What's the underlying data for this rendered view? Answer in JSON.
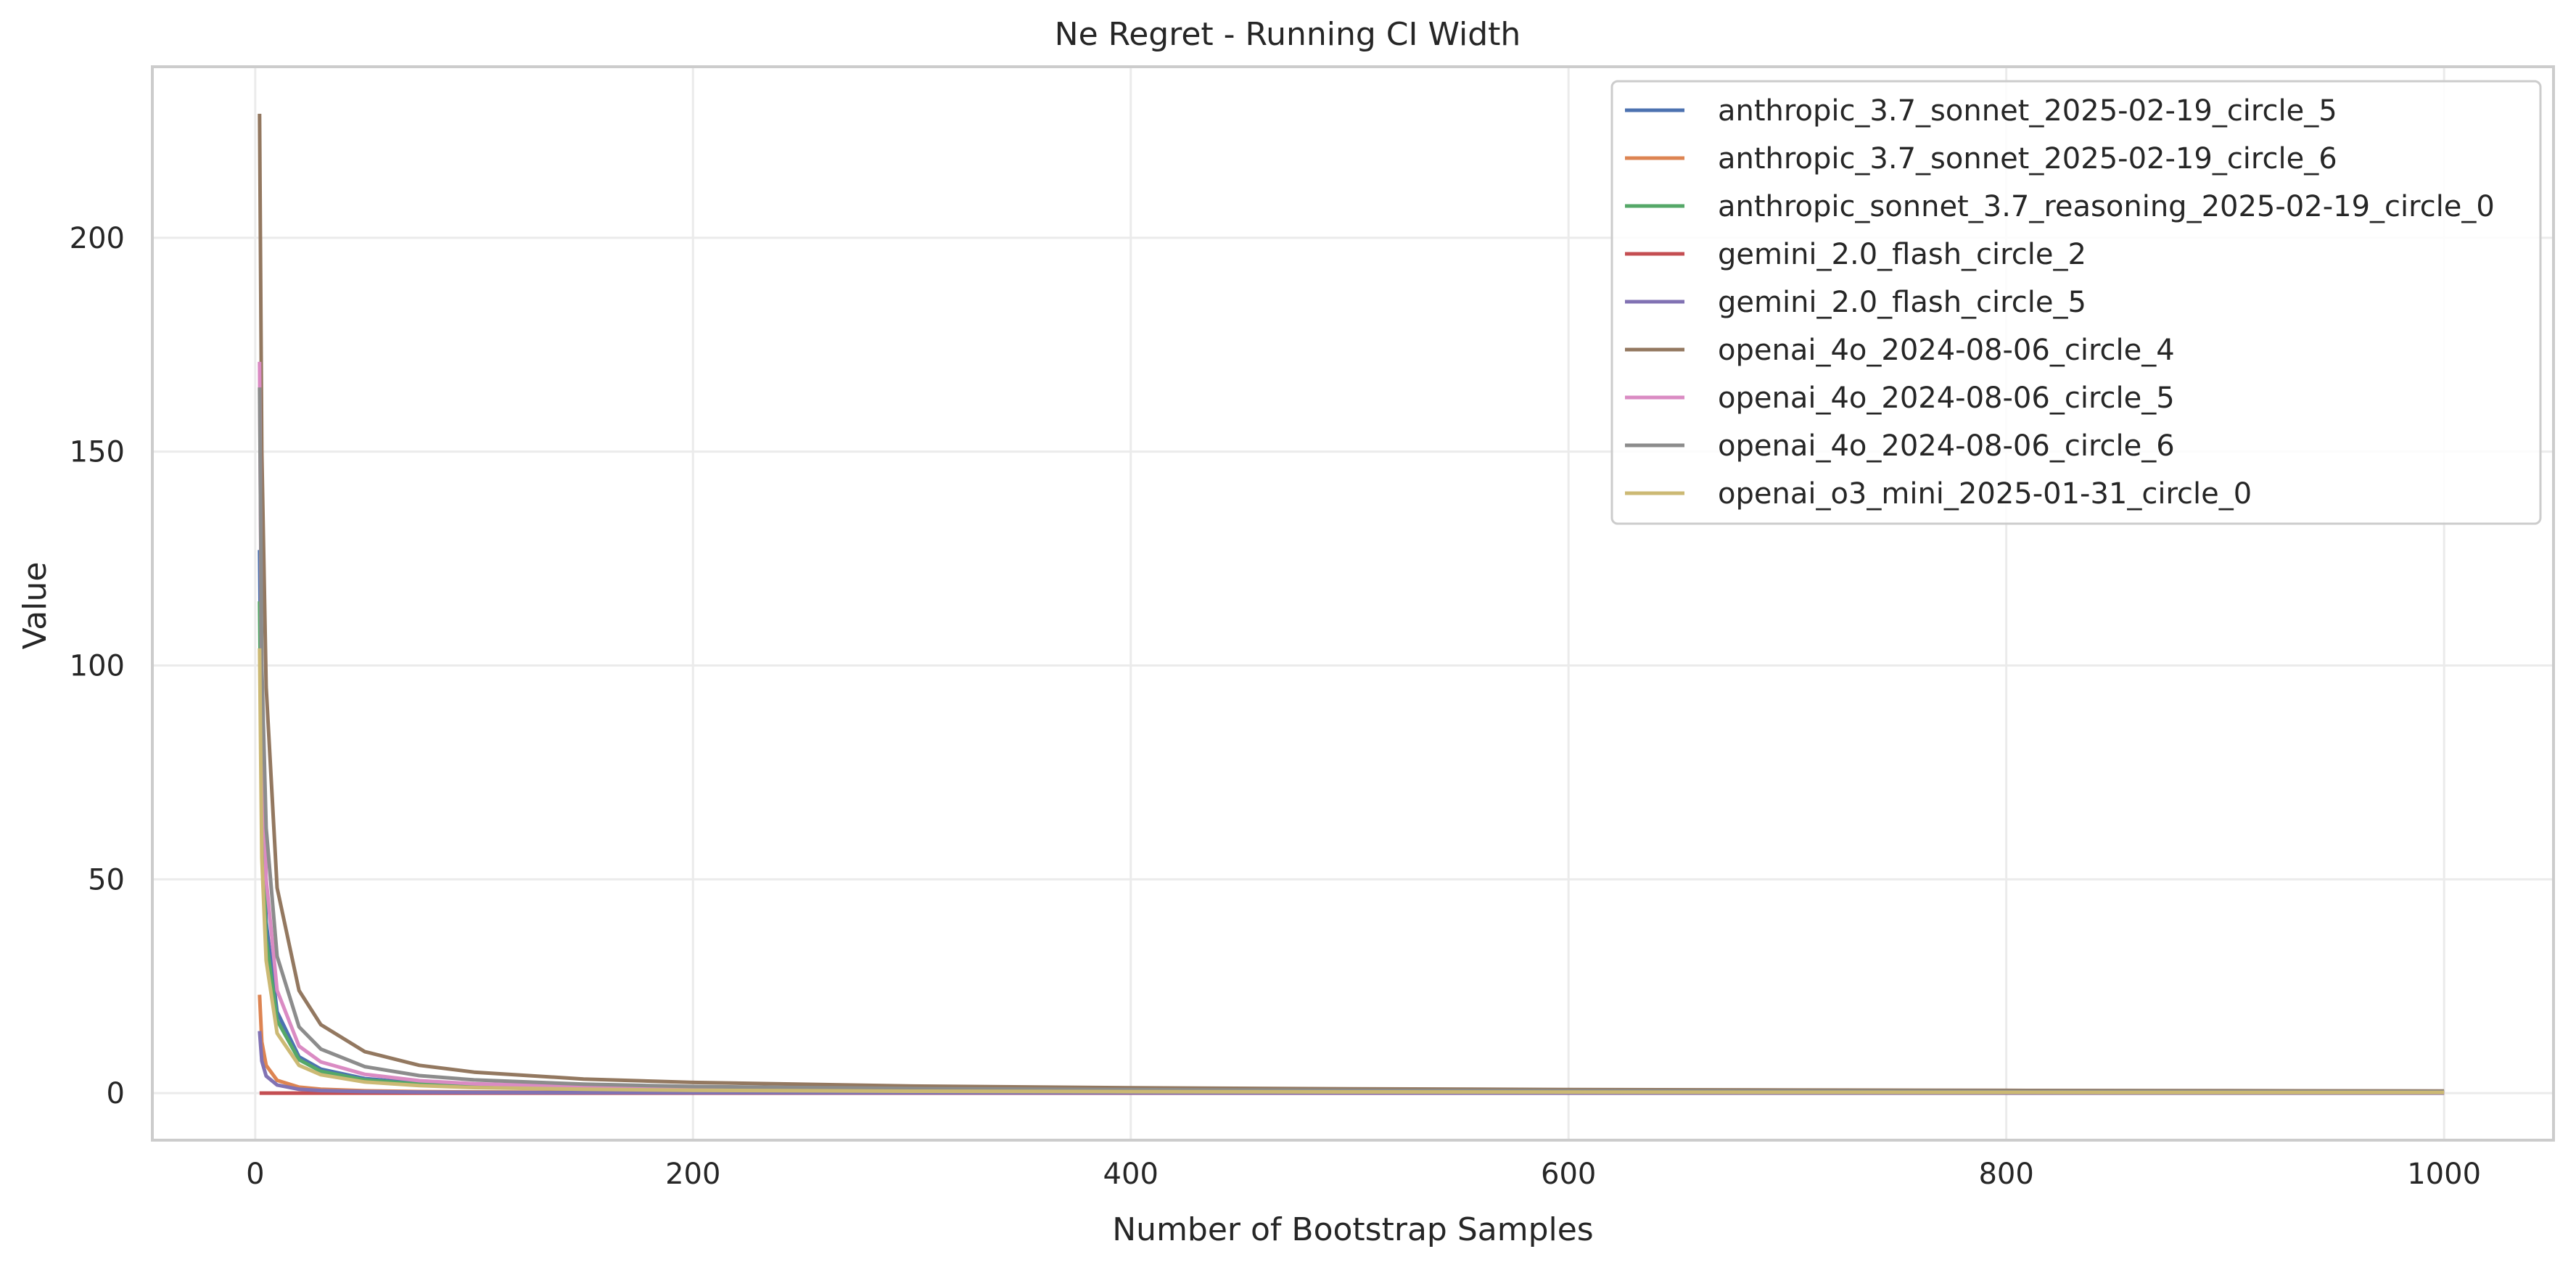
{
  "chart_data": {
    "type": "line",
    "title": "Ne Regret - Running CI Width",
    "xlabel": "Number of Bootstrap Samples",
    "ylabel": "Value",
    "xlim": [
      -47,
      1050
    ],
    "ylim": [
      -11,
      240
    ],
    "x_ticks": [
      0,
      200,
      400,
      600,
      800,
      1000
    ],
    "y_ticks": [
      0,
      50,
      100,
      150,
      200
    ],
    "grid": true,
    "legend_position": "top-right",
    "x": [
      2,
      3,
      5,
      10,
      20,
      30,
      50,
      75,
      100,
      150,
      200,
      300,
      400,
      500,
      600,
      700,
      800,
      900,
      1000
    ],
    "series": [
      {
        "name": "anthropic_3.7_sonnet_2025-02-19_circle_5",
        "color": "#4c72b0",
        "values": [
          127,
          70,
          40,
          19,
          8.5,
          5.6,
          3.4,
          2.3,
          1.7,
          1.2,
          0.9,
          0.6,
          0.45,
          0.37,
          0.31,
          0.27,
          0.24,
          0.22,
          0.2
        ]
      },
      {
        "name": "anthropic_3.7_sonnet_2025-02-19_circle_6",
        "color": "#dd8452",
        "values": [
          23,
          12,
          6.5,
          3,
          1.4,
          0.9,
          0.55,
          0.37,
          0.28,
          0.19,
          0.15,
          0.1,
          0.08,
          0.06,
          0.05,
          0.045,
          0.04,
          0.035,
          0.03
        ]
      },
      {
        "name": "anthropic_sonnet_3.7_reasoning_2025-02-19_circle_0",
        "color": "#55a868",
        "values": [
          115,
          62,
          36,
          17,
          7.8,
          5.1,
          3.1,
          2.1,
          1.6,
          1.1,
          0.8,
          0.55,
          0.42,
          0.34,
          0.29,
          0.25,
          0.22,
          0.2,
          0.18
        ]
      },
      {
        "name": "gemini_2.0_flash_circle_2",
        "color": "#c44e52",
        "values": [
          0,
          0,
          0,
          0,
          0,
          0,
          0,
          0,
          0,
          0,
          0,
          0,
          0,
          0,
          0,
          0,
          0,
          0,
          0
        ]
      },
      {
        "name": "gemini_2.0_flash_circle_5",
        "color": "#8172b3",
        "values": [
          14.5,
          7.5,
          4,
          1.9,
          0.9,
          0.6,
          0.36,
          0.24,
          0.18,
          0.12,
          0.09,
          0.06,
          0.05,
          0.04,
          0.03,
          0.03,
          0.025,
          0.02,
          0.02
        ]
      },
      {
        "name": "openai_4o_2024-08-06_circle_4",
        "color": "#937860",
        "values": [
          229,
          150,
          95,
          48,
          24,
          16,
          9.7,
          6.5,
          4.9,
          3.3,
          2.5,
          1.65,
          1.25,
          1.0,
          0.84,
          0.72,
          0.63,
          0.56,
          0.5
        ]
      },
      {
        "name": "openai_4o_2024-08-06_circle_5",
        "color": "#da8bc3",
        "values": [
          171,
          90,
          50,
          24,
          11,
          7.3,
          4.4,
          2.9,
          2.2,
          1.5,
          1.1,
          0.75,
          0.56,
          0.45,
          0.38,
          0.32,
          0.28,
          0.25,
          0.23
        ]
      },
      {
        "name": "openai_4o_2024-08-06_circle_6",
        "color": "#8c8c8c",
        "values": [
          165,
          100,
          62,
          32,
          15.5,
          10.3,
          6.2,
          4.1,
          3.1,
          2.1,
          1.55,
          1.05,
          0.8,
          0.64,
          0.53,
          0.46,
          0.4,
          0.36,
          0.32
        ]
      },
      {
        "name": "openai_o3_mini_2025-01-31_circle_0",
        "color": "#ccb974",
        "values": [
          104,
          55,
          31,
          14,
          6.5,
          4.3,
          2.6,
          1.75,
          1.3,
          0.9,
          0.66,
          0.45,
          0.34,
          0.27,
          0.23,
          0.2,
          0.17,
          0.15,
          0.14
        ]
      }
    ]
  }
}
